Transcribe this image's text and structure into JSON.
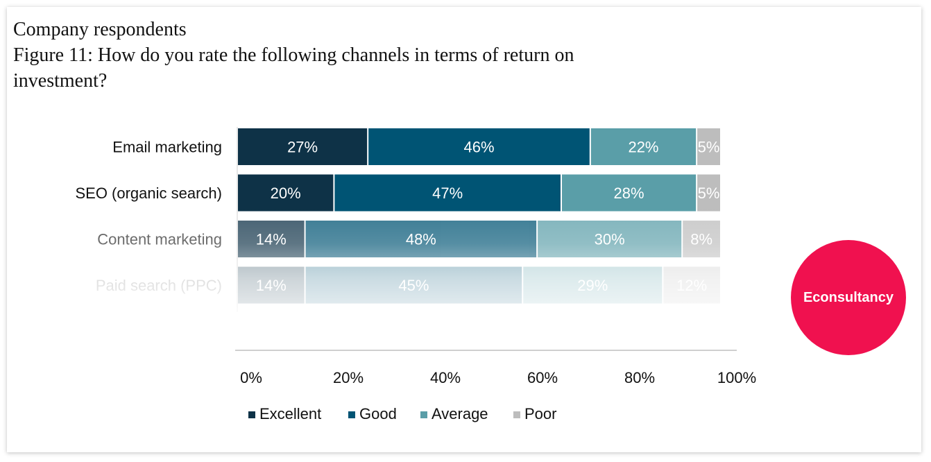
{
  "header": {
    "line1": "Company respondents",
    "line2": "Figure 11: How do you rate the following channels in terms of return on",
    "line3": "investment?"
  },
  "logo": {
    "text": "Econsultancy",
    "color": "#f0114f"
  },
  "chart_data": {
    "type": "bar",
    "orientation": "horizontal",
    "stacked": true,
    "categories": [
      "Email marketing",
      "SEO (organic search)",
      "Content marketing",
      "Paid search (PPC)"
    ],
    "series": [
      {
        "name": "Excellent",
        "color": "#0e3247",
        "values": [
          27,
          20,
          14,
          14
        ]
      },
      {
        "name": "Good",
        "color": "#005474",
        "values": [
          46,
          47,
          48,
          45
        ]
      },
      {
        "name": "Average",
        "color": "#5a9ea8",
        "values": [
          22,
          28,
          30,
          29
        ]
      },
      {
        "name": "Poor",
        "color": "#bdbdbd",
        "values": [
          5,
          5,
          8,
          12
        ]
      }
    ],
    "data_labels": [
      [
        "27%",
        "46%",
        "22%",
        "5%"
      ],
      [
        "20%",
        "47%",
        "28%",
        "5%"
      ],
      [
        "14%",
        "48%",
        "30%",
        "8%"
      ],
      [
        "14%",
        "45%",
        "29%",
        "12%"
      ]
    ],
    "x_ticks": [
      "0%",
      "20%",
      "40%",
      "60%",
      "80%",
      "100%"
    ],
    "xlim": [
      0,
      100
    ],
    "legend_position": "bottom",
    "grid": false
  }
}
